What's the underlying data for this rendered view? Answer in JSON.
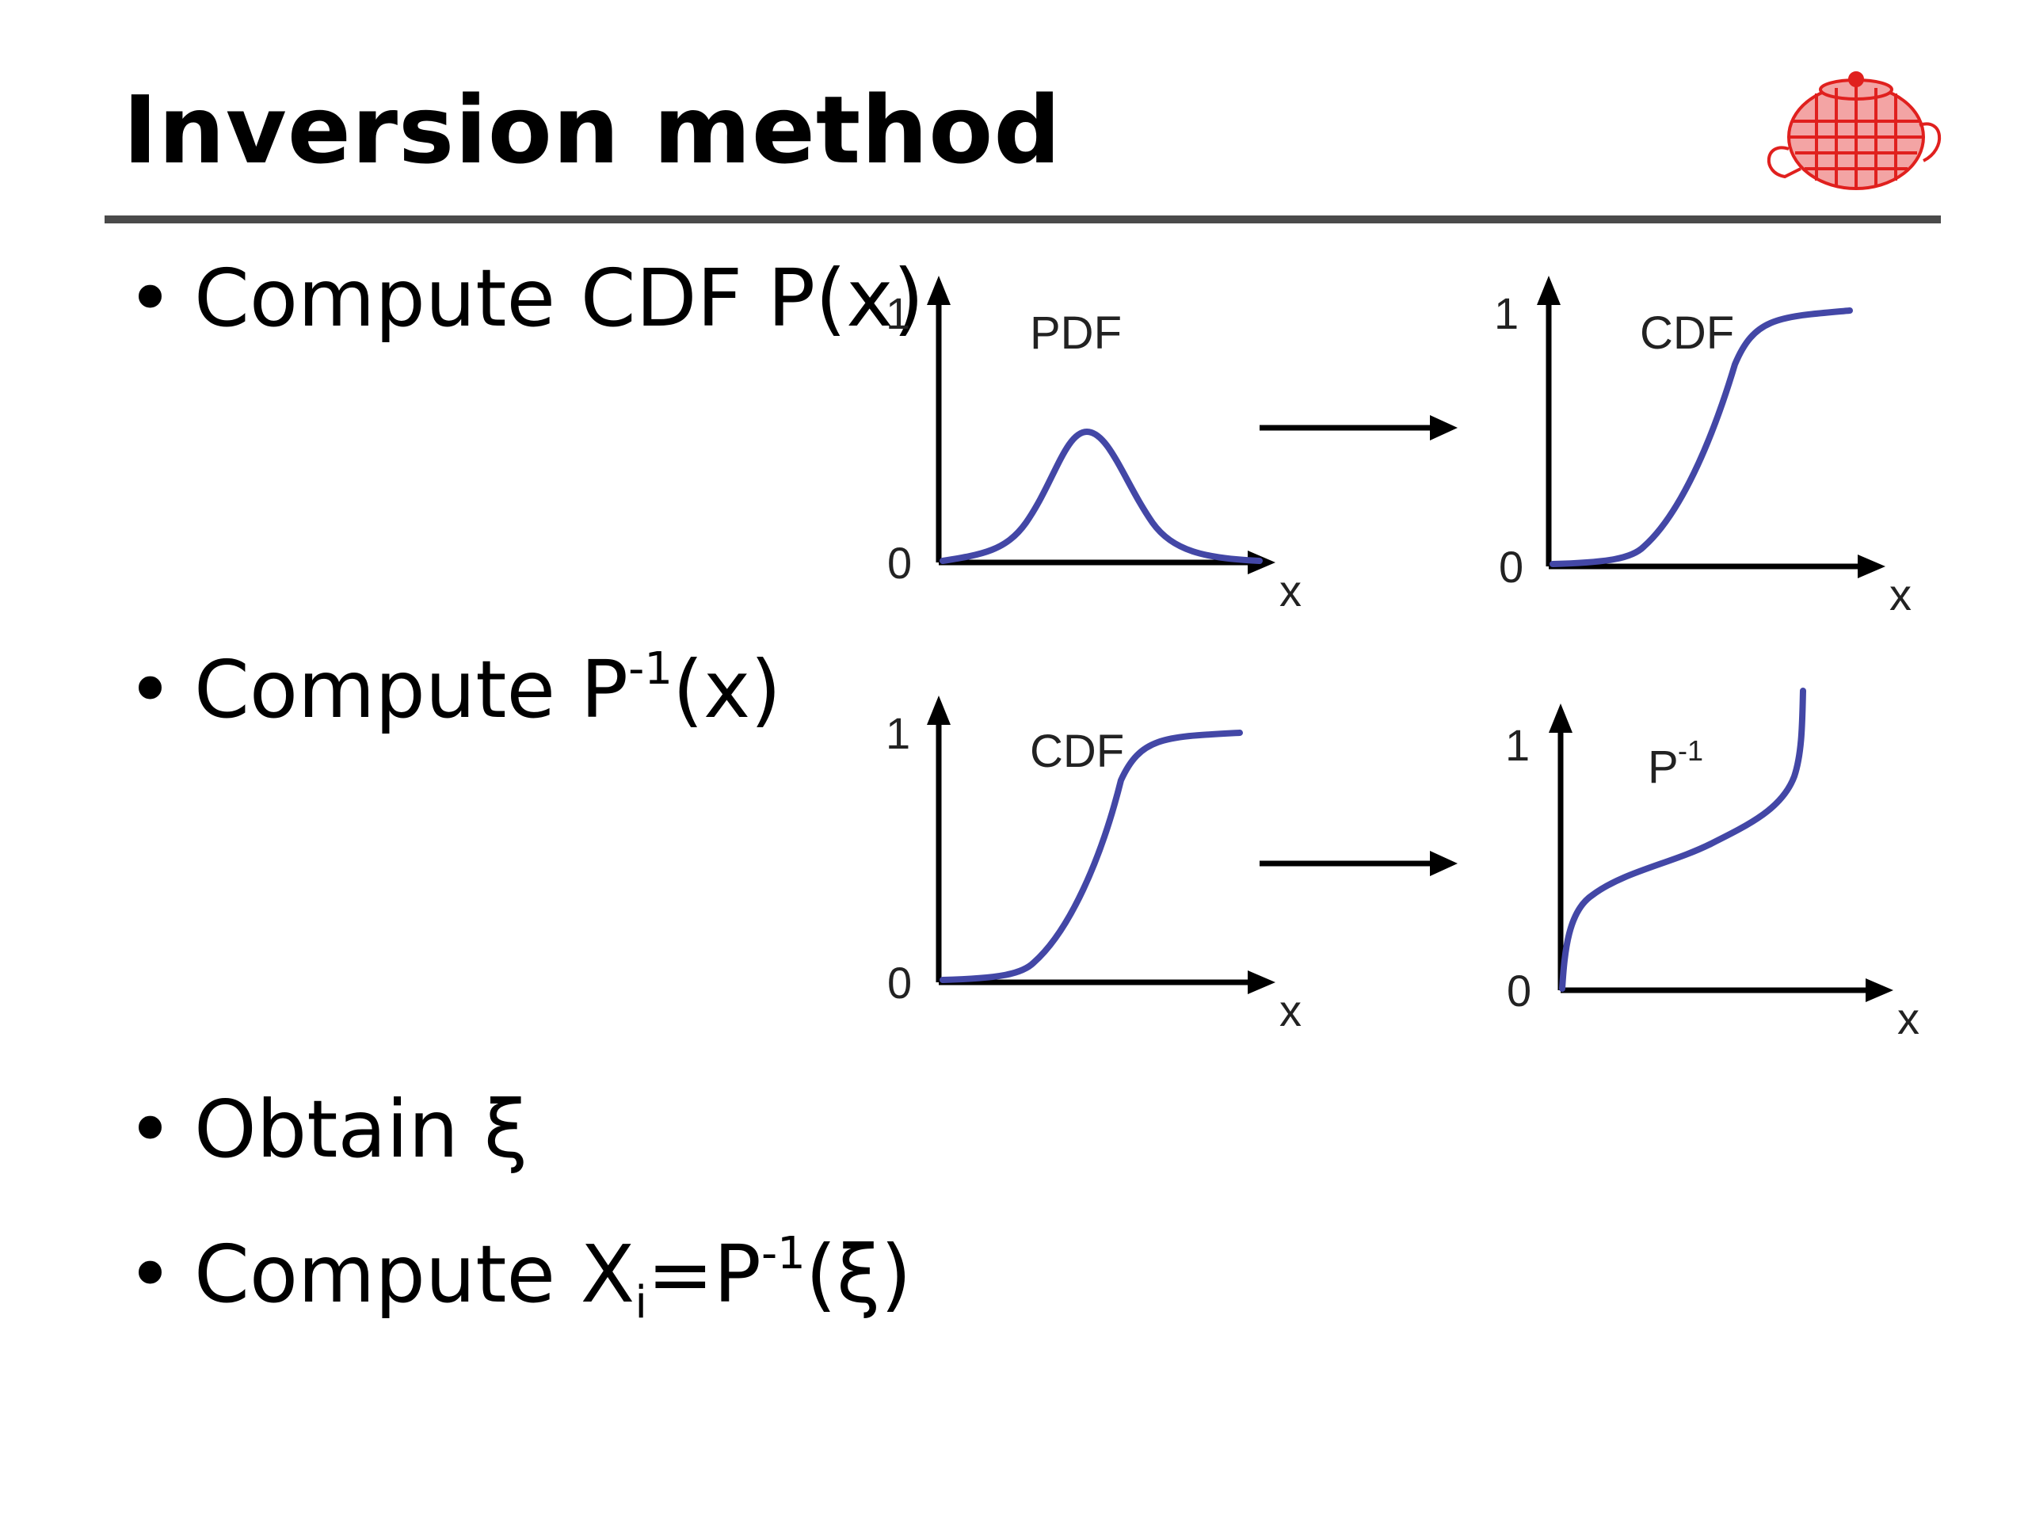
{
  "slide": {
    "title": "Inversion method"
  },
  "bullets": [
    {
      "dot": "•",
      "text": "Compute CDF P(x)"
    },
    {
      "dot": "•",
      "pre": "Compute P",
      "sup": "-1",
      "post": "(x)"
    },
    {
      "dot": "•",
      "text": "Obtain ξ"
    },
    {
      "dot": "•",
      "pre": "Compute X",
      "sub": "i",
      "mid": "=P",
      "sup": "-1",
      "post": "(ξ)"
    }
  ],
  "panels": [
    {
      "label": "PDF",
      "y_top": "1",
      "y_zero": "0",
      "x_axis": "x",
      "curve": "pdf"
    },
    {
      "label": "CDF",
      "y_top": "1",
      "y_zero": "0",
      "x_axis": "x",
      "curve": "cdf"
    },
    {
      "label": "CDF",
      "y_top": "1",
      "y_zero": "0",
      "x_axis": "x",
      "curve": "cdf"
    },
    {
      "label": "P",
      "label_sup": "-1",
      "y_top": "1",
      "y_zero": "0",
      "x_axis": "x",
      "curve": "inverse"
    }
  ],
  "colors": {
    "curve": "#4347a6",
    "rule": "#4a4a4a",
    "logo": "#e0201e"
  },
  "icons": {
    "logo": "teapot-wireframe-icon",
    "arrows": "right-arrow-icon"
  }
}
